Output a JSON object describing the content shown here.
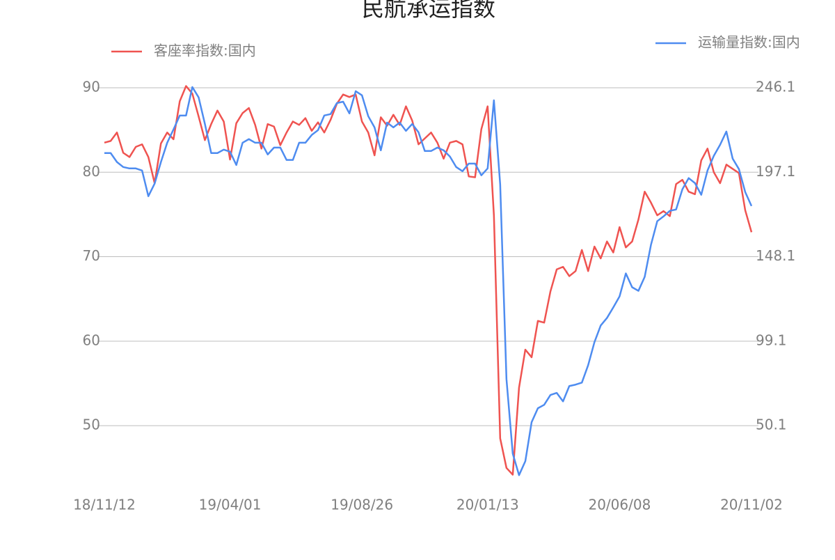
{
  "chart_data": {
    "type": "line",
    "title": "民航承运指数",
    "categories": [
      "18/11/12",
      null,
      null,
      null,
      null,
      null,
      null,
      null,
      null,
      null,
      null,
      null,
      null,
      null,
      null,
      null,
      null,
      null,
      null,
      null,
      "19/04/01",
      null,
      null,
      null,
      null,
      null,
      null,
      null,
      null,
      null,
      null,
      null,
      null,
      null,
      null,
      null,
      null,
      null,
      null,
      null,
      null,
      "19/08/26",
      null,
      null,
      null,
      null,
      null,
      null,
      null,
      null,
      null,
      null,
      null,
      null,
      null,
      null,
      null,
      null,
      null,
      null,
      null,
      "20/01/13",
      null,
      null,
      null,
      null,
      null,
      null,
      null,
      null,
      null,
      null,
      null,
      null,
      null,
      null,
      null,
      null,
      null,
      null,
      null,
      null,
      "20/06/08",
      null,
      null,
      null,
      null,
      null,
      null,
      null,
      null,
      null,
      null,
      null,
      null,
      null,
      null,
      null,
      null,
      null,
      null,
      null,
      null,
      "20/11/02"
    ],
    "series": [
      {
        "name": "客座率指数:国内",
        "color": "#ef5350",
        "axis": "y",
        "legend": "top-left",
        "values": [
          83.5,
          83.7,
          84.7,
          82.3,
          81.8,
          83.0,
          83.3,
          81.8,
          78.7,
          83.4,
          84.7,
          83.9,
          88.4,
          90.2,
          89.3,
          86.6,
          83.8,
          85.7,
          87.3,
          86.0,
          81.5,
          85.8,
          87.0,
          87.6,
          85.6,
          82.8,
          85.7,
          85.4,
          83.2,
          84.7,
          86.0,
          85.6,
          86.4,
          84.9,
          85.9,
          84.7,
          86.2,
          88.1,
          89.2,
          88.9,
          89.2,
          86.0,
          84.7,
          82.0,
          86.5,
          85.5,
          86.8,
          85.6,
          87.8,
          86.1,
          83.3,
          84.0,
          84.7,
          83.5,
          81.6,
          83.5,
          83.7,
          83.3,
          79.5,
          79.4,
          85.1,
          87.8,
          74.9,
          48.5,
          45.0,
          44.2,
          54.5,
          59.0,
          58.1,
          62.4,
          62.2,
          65.9,
          68.5,
          68.8,
          67.7,
          68.3,
          70.8,
          68.3,
          71.2,
          69.8,
          71.8,
          70.5,
          73.5,
          71.1,
          71.8,
          74.4,
          77.7,
          76.4,
          74.9,
          75.4,
          74.8,
          78.6,
          79.1,
          77.7,
          77.4,
          81.4,
          82.8,
          80.0,
          78.7,
          80.9,
          80.4,
          79.9,
          75.5,
          72.9
        ]
      },
      {
        "name": "运输量指数:国内",
        "color": "#4e8cf0",
        "axis": "y2",
        "legend": "top-right",
        "values": [
          208.2,
          208.2,
          203.0,
          200.1,
          199.3,
          199.3,
          198.1,
          183.2,
          190.5,
          203.0,
          214.2,
          221.9,
          230.0,
          230.0,
          246.5,
          240.5,
          225.1,
          208.2,
          208.2,
          210.2,
          209.0,
          201.3,
          214.2,
          216.3,
          214.2,
          214.2,
          207.4,
          211.4,
          211.4,
          204.2,
          204.2,
          214.2,
          214.2,
          218.7,
          221.5,
          230.0,
          230.8,
          237.2,
          238.0,
          231.2,
          244.1,
          241.7,
          229.6,
          223.1,
          209.8,
          225.9,
          223.1,
          225.9,
          221.1,
          225.1,
          220.3,
          209.4,
          209.4,
          211.4,
          209.8,
          206.2,
          200.1,
          197.7,
          202.1,
          202.1,
          195.3,
          199.3,
          238.8,
          190.0,
          77.1,
          33.9,
          21.4,
          29.5,
          52.1,
          60.2,
          62.2,
          67.9,
          69.1,
          64.2,
          73.1,
          73.9,
          75.1,
          85.2,
          98.5,
          108.2,
          112.6,
          118.7,
          125.1,
          138.4,
          130.4,
          128.3,
          136.4,
          155.0,
          168.7,
          171.5,
          174.7,
          175.5,
          187.2,
          193.7,
          190.8,
          184.0,
          198.1,
          206.6,
          213.0,
          220.7,
          205.0,
          198.9,
          185.6,
          177.5
        ]
      }
    ],
    "ylim": [
      43.5,
      92
    ],
    "yticks": [
      50,
      60,
      70,
      80,
      90
    ],
    "y2lim": [
      18.25,
      255.9
    ],
    "y2ticks": [
      50.1,
      99.1,
      148.1,
      197.1,
      246.1
    ],
    "grid": true
  }
}
